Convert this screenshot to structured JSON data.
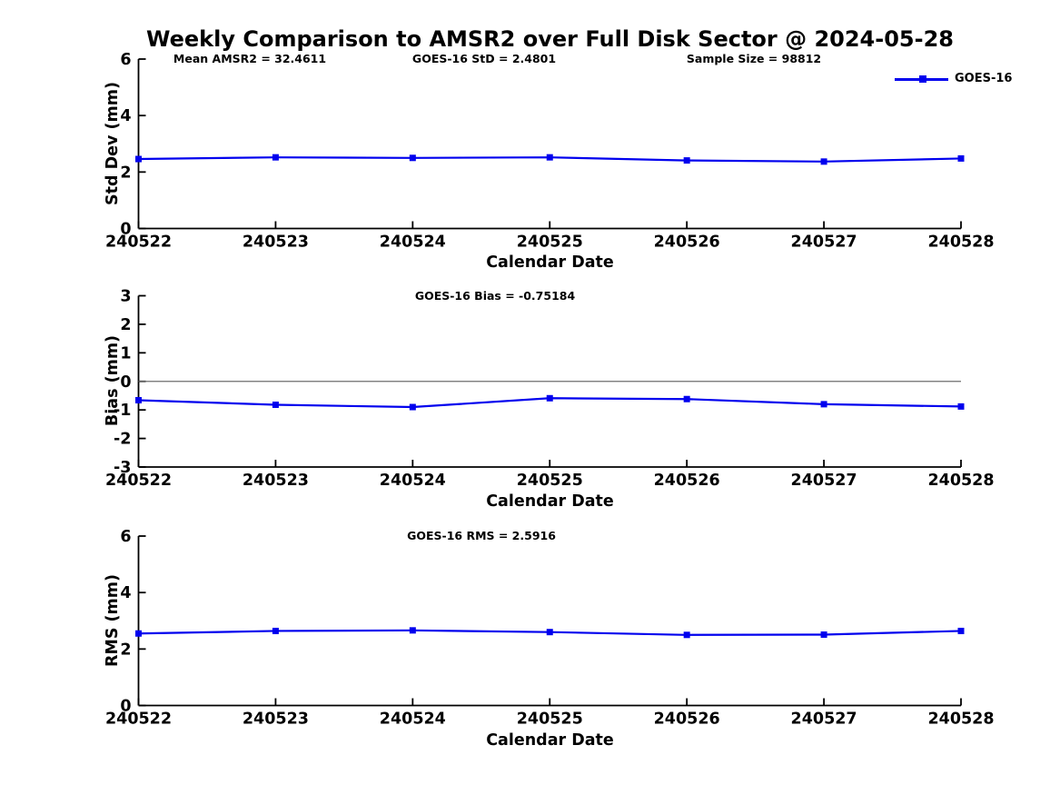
{
  "title": "Weekly Comparison to AMSR2 over Full Disk Sector @ 2024-05-28",
  "legend": {
    "label": "GOES-16"
  },
  "colors": {
    "line_blue": "#0000ee",
    "zero_line_gray": "#6e6e6e",
    "axis_black": "#000000"
  },
  "chart_data": [
    {
      "type": "line",
      "title": "",
      "annotations": [
        "Mean AMSR2 = 32.4611",
        "GOES-16 StD = 2.4801",
        "Sample Size = 98812"
      ],
      "xlabel": "Calendar Date",
      "ylabel": "Std Dev (mm)",
      "categories": [
        "240522",
        "240523",
        "240524",
        "240525",
        "240526",
        "240527",
        "240528"
      ],
      "series": [
        {
          "name": "GOES-16",
          "values": [
            2.46,
            2.52,
            2.5,
            2.52,
            2.41,
            2.37,
            2.48
          ]
        }
      ],
      "ylim": [
        0,
        6
      ],
      "yticks": [
        "0",
        "2",
        "4",
        "6"
      ],
      "ytick_values": [
        0,
        2,
        4,
        6
      ],
      "zero_line": false,
      "grid": false,
      "legend_position": "top-right",
      "marker": "square"
    },
    {
      "type": "line",
      "title": "",
      "annotations": [
        "GOES-16 Bias  = -0.75184"
      ],
      "xlabel": "Calendar Date",
      "ylabel": "Bias (mm)",
      "categories": [
        "240522",
        "240523",
        "240524",
        "240525",
        "240526",
        "240527",
        "240528"
      ],
      "series": [
        {
          "name": "GOES-16",
          "values": [
            -0.66,
            -0.82,
            -0.9,
            -0.59,
            -0.62,
            -0.8,
            -0.88
          ]
        }
      ],
      "ylim": [
        -3,
        3
      ],
      "yticks": [
        "-3",
        "-2",
        "-1",
        "0",
        "1",
        "2",
        "3"
      ],
      "ytick_values": [
        -3,
        -2,
        -1,
        0,
        1,
        2,
        3
      ],
      "zero_line": true,
      "grid": false,
      "legend_position": "none",
      "marker": "square"
    },
    {
      "type": "line",
      "title": "",
      "annotations": [
        "GOES-16 RMS = 2.5916"
      ],
      "xlabel": "Calendar Date",
      "ylabel": "RMS (mm)",
      "categories": [
        "240522",
        "240523",
        "240524",
        "240525",
        "240526",
        "240527",
        "240528"
      ],
      "series": [
        {
          "name": "GOES-16",
          "values": [
            2.55,
            2.64,
            2.66,
            2.6,
            2.5,
            2.51,
            2.64
          ]
        }
      ],
      "ylim": [
        0,
        6
      ],
      "yticks": [
        "0",
        "2",
        "4",
        "6"
      ],
      "ytick_values": [
        0,
        2,
        4,
        6
      ],
      "zero_line": false,
      "grid": false,
      "legend_position": "none",
      "marker": "square"
    }
  ]
}
